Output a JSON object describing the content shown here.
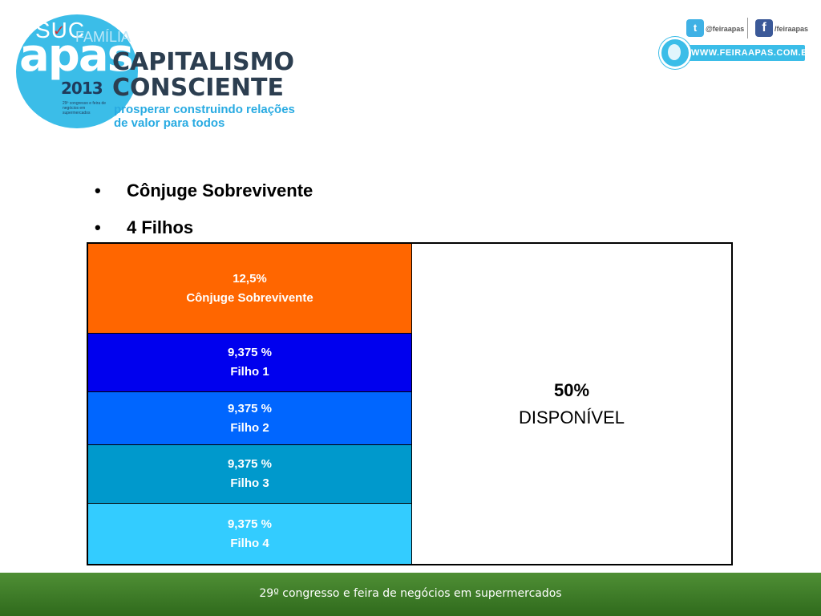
{
  "header": {
    "ghost_title": "SUC",
    "ghost_check": "✓",
    "ghost_subtitle": "FAMÍLIA",
    "logo_text": "apas",
    "logo_year": "2013",
    "logo_small_text": "29º congresso e feira de negócios em supermercados",
    "campaign_line1": "CAPITALISMO",
    "campaign_line2": "CONSCIENTE",
    "tagline_line1": "prosperar construindo relações",
    "tagline_line2": "de valor para todos"
  },
  "social": {
    "twitter_icon": "twitter-icon",
    "twitter_glyph": "t",
    "twitter_handle": "@feiraapas",
    "facebook_icon": "facebook-icon",
    "facebook_glyph": "f",
    "facebook_handle": "/feiraapas",
    "website": "WWW.FEIRAAPAS.COM.BR"
  },
  "bullets": [
    {
      "marker": "•",
      "text": "Cônjuge Sobrevivente"
    },
    {
      "marker": "•",
      "text": "4 Filhos"
    }
  ],
  "table": {
    "left_cells": [
      {
        "percent": "12,5%",
        "label": "Cônjuge Sobrevivente",
        "color": "#ff6600"
      },
      {
        "percent": "9,375 %",
        "label": "Filho 1",
        "color": "#0000ee"
      },
      {
        "percent": "9,375 %",
        "label": "Filho 2",
        "color": "#0066ff"
      },
      {
        "percent": "9,375 %",
        "label": "Filho 3",
        "color": "#0099cc"
      },
      {
        "percent": "9,375 %",
        "label": "Filho 4",
        "color": "#33ccff"
      }
    ],
    "right_cell": {
      "percent": "50%",
      "label": "DISPONÍVEL"
    }
  },
  "footer": {
    "text": "29º congresso e feira de negócios em supermercados",
    "color": "#3f7d2a"
  }
}
